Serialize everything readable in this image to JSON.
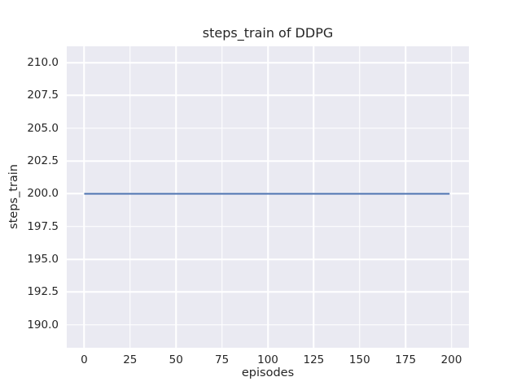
{
  "chart_data": {
    "type": "line",
    "title": "steps_train of DDPG",
    "xlabel": "episodes",
    "ylabel": "steps_train",
    "xlim": [
      -9.5,
      209.5
    ],
    "ylim": [
      188.25,
      211.25
    ],
    "grid": true,
    "legend": false,
    "x_ticks": [
      {
        "value": 0,
        "label": "0"
      },
      {
        "value": 25,
        "label": "25"
      },
      {
        "value": 50,
        "label": "50"
      },
      {
        "value": 75,
        "label": "75"
      },
      {
        "value": 100,
        "label": "100"
      },
      {
        "value": 125,
        "label": "125"
      },
      {
        "value": 150,
        "label": "150"
      },
      {
        "value": 175,
        "label": "175"
      },
      {
        "value": 200,
        "label": "200"
      }
    ],
    "y_ticks": [
      {
        "value": 190.0,
        "label": "190.0"
      },
      {
        "value": 192.5,
        "label": "192.5"
      },
      {
        "value": 195.0,
        "label": "195.0"
      },
      {
        "value": 197.5,
        "label": "197.5"
      },
      {
        "value": 200.0,
        "label": "200.0"
      },
      {
        "value": 202.5,
        "label": "202.5"
      },
      {
        "value": 205.0,
        "label": "205.0"
      },
      {
        "value": 207.5,
        "label": "207.5"
      },
      {
        "value": 210.0,
        "label": "210.0"
      }
    ],
    "series": [
      {
        "name": "steps_train",
        "color": "#4c72b0",
        "x": [
          0,
          199
        ],
        "y": [
          200,
          200
        ],
        "description": "constant flat line at steps_train = 200 for episodes 0 through 199"
      }
    ],
    "colors": {
      "plot_background": "#eaeaf2",
      "figure_background": "#ffffff",
      "gridline": "#ffffff",
      "text": "#262626"
    }
  }
}
